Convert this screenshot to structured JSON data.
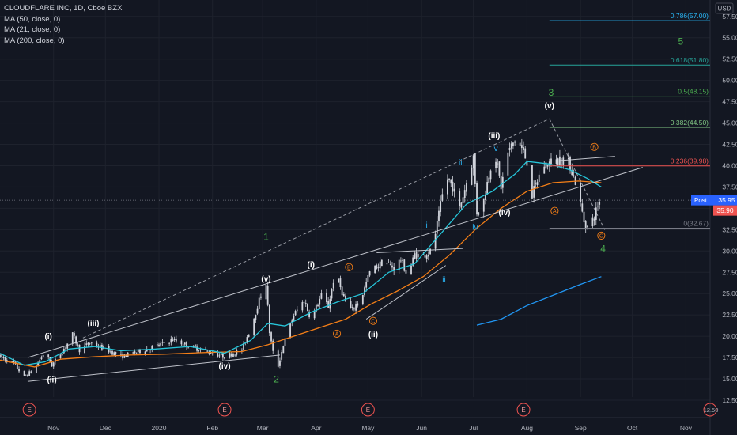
{
  "header": {
    "symbol_line": "CLOUDFLARE INC, 1D, Cboe BZX",
    "indicators": [
      "MA (50, close, 0)",
      "MA (21, close, 0)",
      "MA (200, close, 0)"
    ]
  },
  "currency_badge": "USD",
  "price_badges": {
    "post_label": "Post",
    "post_value": "35.95",
    "last_value": "35.90"
  },
  "colors": {
    "background": "#131722",
    "grid": "#1e222d",
    "axis_text": "#b2b5be",
    "candle_up": "#d1d4dc",
    "candle_down": "#d1d4dc",
    "ma50": "#f57f17",
    "ma21": "#26c6da",
    "ma200": "#2196f3",
    "trendline": "#d1d4dc",
    "wave_green": "#4caf50",
    "wave_orange": "#f57f17",
    "wave_blue": "#29b6f6",
    "wave_white": "#ffffff",
    "post_badge": "#2962ff",
    "last_badge": "#ef5350"
  },
  "chart_data": {
    "type": "candlestick",
    "title": "CLOUDFLARE INC, 1D, Cboe BZX",
    "ylim": [
      12.5,
      58.5
    ],
    "y_ticks": [
      "57.50",
      "55.00",
      "52.50",
      "50.00",
      "47.50",
      "45.00",
      "42.50",
      "40.00",
      "37.50",
      "35.00",
      "32.50",
      "30.00",
      "27.50",
      "25.00",
      "22.50",
      "20.00",
      "17.50",
      "15.00",
      "12.50"
    ],
    "x_ticks": [
      "Nov",
      "Dec",
      "2020",
      "Feb",
      "Mar",
      "Apr",
      "May",
      "Jun",
      "Jul",
      "Aug",
      "Sep",
      "Oct",
      "Nov"
    ],
    "x_tick_days": [
      31,
      61,
      92,
      123,
      152,
      183,
      213,
      244,
      274,
      305,
      336,
      366,
      397
    ],
    "day_range": [
      0,
      411
    ],
    "earnings_days": [
      17,
      130,
      213,
      303,
      411
    ],
    "earnings_label": "E",
    "last_earnings_label": "12.50",
    "anchors": [
      [
        0,
        17.6
      ],
      [
        8,
        16.8
      ],
      [
        14,
        15.2
      ],
      [
        20,
        16.2
      ],
      [
        26,
        18.2
      ],
      [
        30,
        16.6
      ],
      [
        38,
        18.8
      ],
      [
        42,
        20.2
      ],
      [
        46,
        18.4
      ],
      [
        52,
        19.2
      ],
      [
        60,
        18.6
      ],
      [
        70,
        17.6
      ],
      [
        80,
        18.2
      ],
      [
        90,
        18.8
      ],
      [
        100,
        19.6
      ],
      [
        110,
        18.8
      ],
      [
        120,
        18.2
      ],
      [
        130,
        17.6
      ],
      [
        140,
        18.4
      ],
      [
        146,
        21.5
      ],
      [
        150,
        24.2
      ],
      [
        154,
        26.3
      ],
      [
        156,
        20.5
      ],
      [
        160,
        15.7
      ],
      [
        164,
        19.0
      ],
      [
        170,
        22.5
      ],
      [
        176,
        24.2
      ],
      [
        180,
        22.0
      ],
      [
        186,
        24.8
      ],
      [
        190,
        23.5
      ],
      [
        194,
        27.5
      ],
      [
        200,
        24.0
      ],
      [
        204,
        23.0
      ],
      [
        210,
        25.0
      ],
      [
        214,
        27.5
      ],
      [
        222,
        28.8
      ],
      [
        228,
        28.0
      ],
      [
        232,
        29.0
      ],
      [
        236,
        27.0
      ],
      [
        240,
        29.6
      ],
      [
        244,
        29.4
      ],
      [
        250,
        30.0
      ],
      [
        254,
        34.2
      ],
      [
        258,
        38.8
      ],
      [
        262,
        37.5
      ],
      [
        266,
        35.0
      ],
      [
        270,
        38.0
      ],
      [
        274,
        41.0
      ],
      [
        276,
        34.5
      ],
      [
        280,
        36.0
      ],
      [
        286,
        42.0
      ],
      [
        290,
        37.5
      ],
      [
        294,
        41.5
      ],
      [
        298,
        43.0
      ],
      [
        302,
        42.0
      ],
      [
        305,
        40.5
      ],
      [
        308,
        36.5
      ],
      [
        314,
        40.0
      ],
      [
        320,
        40.5
      ],
      [
        326,
        40.8
      ],
      [
        330,
        40.0
      ],
      [
        334,
        37.5
      ],
      [
        338,
        33.5
      ],
      [
        340,
        32.8
      ],
      [
        344,
        34.0
      ],
      [
        346,
        35.5
      ],
      [
        348,
        35.9
      ]
    ],
    "ma21": [
      [
        0,
        18.0
      ],
      [
        14,
        16.6
      ],
      [
        26,
        17.0
      ],
      [
        40,
        18.5
      ],
      [
        55,
        18.8
      ],
      [
        70,
        18.3
      ],
      [
        90,
        18.5
      ],
      [
        110,
        18.8
      ],
      [
        130,
        18.0
      ],
      [
        145,
        19.5
      ],
      [
        155,
        21.5
      ],
      [
        165,
        21.2
      ],
      [
        180,
        22.8
      ],
      [
        195,
        24.0
      ],
      [
        210,
        25.0
      ],
      [
        225,
        27.5
      ],
      [
        240,
        28.5
      ],
      [
        255,
        32.0
      ],
      [
        270,
        35.5
      ],
      [
        285,
        37.0
      ],
      [
        298,
        39.0
      ],
      [
        305,
        40.5
      ],
      [
        318,
        40.2
      ],
      [
        330,
        39.5
      ],
      [
        340,
        38.5
      ],
      [
        348,
        37.5
      ]
    ],
    "ma50": [
      [
        0,
        17.2
      ],
      [
        20,
        16.4
      ],
      [
        35,
        17.3
      ],
      [
        55,
        17.6
      ],
      [
        75,
        17.8
      ],
      [
        95,
        17.9
      ],
      [
        120,
        18.1
      ],
      [
        140,
        18.2
      ],
      [
        155,
        19.0
      ],
      [
        170,
        20.0
      ],
      [
        185,
        21.0
      ],
      [
        200,
        22.0
      ],
      [
        215,
        23.8
      ],
      [
        230,
        25.3
      ],
      [
        245,
        27.0
      ],
      [
        260,
        29.5
      ],
      [
        275,
        32.5
      ],
      [
        290,
        35.0
      ],
      [
        305,
        37.0
      ],
      [
        320,
        38.0
      ],
      [
        335,
        38.2
      ],
      [
        348,
        38.0
      ]
    ],
    "ma200": [
      [
        276,
        21.3
      ],
      [
        290,
        22.0
      ],
      [
        305,
        23.6
      ],
      [
        320,
        24.8
      ],
      [
        335,
        26.0
      ],
      [
        348,
        27.0
      ]
    ],
    "trendlines": [
      [
        [
          16,
          14.7
        ],
        [
          162,
          17.8
        ]
      ],
      [
        [
          16,
          17.5
        ],
        [
          372,
          39.8
        ]
      ],
      [
        [
          212,
          22.0
        ],
        [
          258,
          28.3
        ]
      ],
      [
        [
          218,
          29.8
        ],
        [
          268,
          30.3
        ]
      ],
      [
        [
          48,
          19.8
        ],
        [
          318,
          45.5
        ]
      ],
      [
        [
          318,
          45.5
        ],
        [
          350,
          32.5
        ]
      ],
      [
        [
          324,
          40.6
        ],
        [
          356,
          41.1
        ]
      ]
    ],
    "fib_levels": [
      {
        "label": "0.786(57.00)",
        "value": 57.0,
        "color": "#29b6f6"
      },
      {
        "label": "0.618(51.80)",
        "value": 51.8,
        "color": "#26a69a"
      },
      {
        "label": "0.5(48.15)",
        "value": 48.15,
        "color": "#4caf50"
      },
      {
        "label": "0.382(44.50)",
        "value": 44.5,
        "color": "#81c784"
      },
      {
        "label": "0.236(39.98)",
        "value": 39.98,
        "color": "#ef5350"
      },
      {
        "label": "0(32.67)",
        "value": 32.67,
        "color": "#787b86"
      }
    ],
    "fib_x_start": 318,
    "wave_labels": [
      {
        "text": "1",
        "day": 154,
        "price": 31.3,
        "color": "green"
      },
      {
        "text": "2",
        "day": 160,
        "price": 14.6,
        "color": "green"
      },
      {
        "text": "3",
        "day": 319,
        "price": 48.2,
        "color": "green"
      },
      {
        "text": "4",
        "day": 349,
        "price": 29.9,
        "color": "green"
      },
      {
        "text": "5",
        "day": 394,
        "price": 54.2,
        "color": "green"
      },
      {
        "text": "(i)",
        "day": 28,
        "price": 19.7,
        "color": "white"
      },
      {
        "text": "(ii)",
        "day": 30,
        "price": 14.6,
        "color": "white"
      },
      {
        "text": "(iii)",
        "day": 54,
        "price": 21.2,
        "color": "white"
      },
      {
        "text": "(iv)",
        "day": 130,
        "price": 16.2,
        "color": "white"
      },
      {
        "text": "(v)",
        "day": 154,
        "price": 26.4,
        "color": "white"
      },
      {
        "text": "(i)",
        "day": 180,
        "price": 28.1,
        "color": "white"
      },
      {
        "text": "(ii)",
        "day": 216,
        "price": 19.9,
        "color": "white"
      },
      {
        "text": "(iii)",
        "day": 286,
        "price": 43.2,
        "color": "white"
      },
      {
        "text": "(iv)",
        "day": 292,
        "price": 34.2,
        "color": "white"
      },
      {
        "text": "(v)",
        "day": 318,
        "price": 46.7,
        "color": "white"
      },
      {
        "text": "i",
        "day": 247,
        "price": 32.7,
        "color": "blue"
      },
      {
        "text": "ii",
        "day": 257,
        "price": 26.3,
        "color": "blue"
      },
      {
        "text": "iii",
        "day": 267,
        "price": 40.1,
        "color": "blue"
      },
      {
        "text": "iv",
        "day": 275,
        "price": 32.5,
        "color": "blue"
      },
      {
        "text": "v",
        "day": 287,
        "price": 41.7,
        "color": "blue"
      }
    ],
    "circle_labels": [
      {
        "text": "A",
        "day": 195,
        "price": 20.3,
        "color": "orange"
      },
      {
        "text": "B",
        "day": 202,
        "price": 28.1,
        "color": "orange"
      },
      {
        "text": "C",
        "day": 216,
        "price": 21.8,
        "color": "orange"
      },
      {
        "text": "A",
        "day": 321,
        "price": 34.7,
        "color": "orange"
      },
      {
        "text": "B",
        "day": 344,
        "price": 42.2,
        "color": "orange"
      },
      {
        "text": "C",
        "day": 348,
        "price": 31.8,
        "color": "orange"
      }
    ],
    "last_price": 35.95,
    "grid": true
  }
}
